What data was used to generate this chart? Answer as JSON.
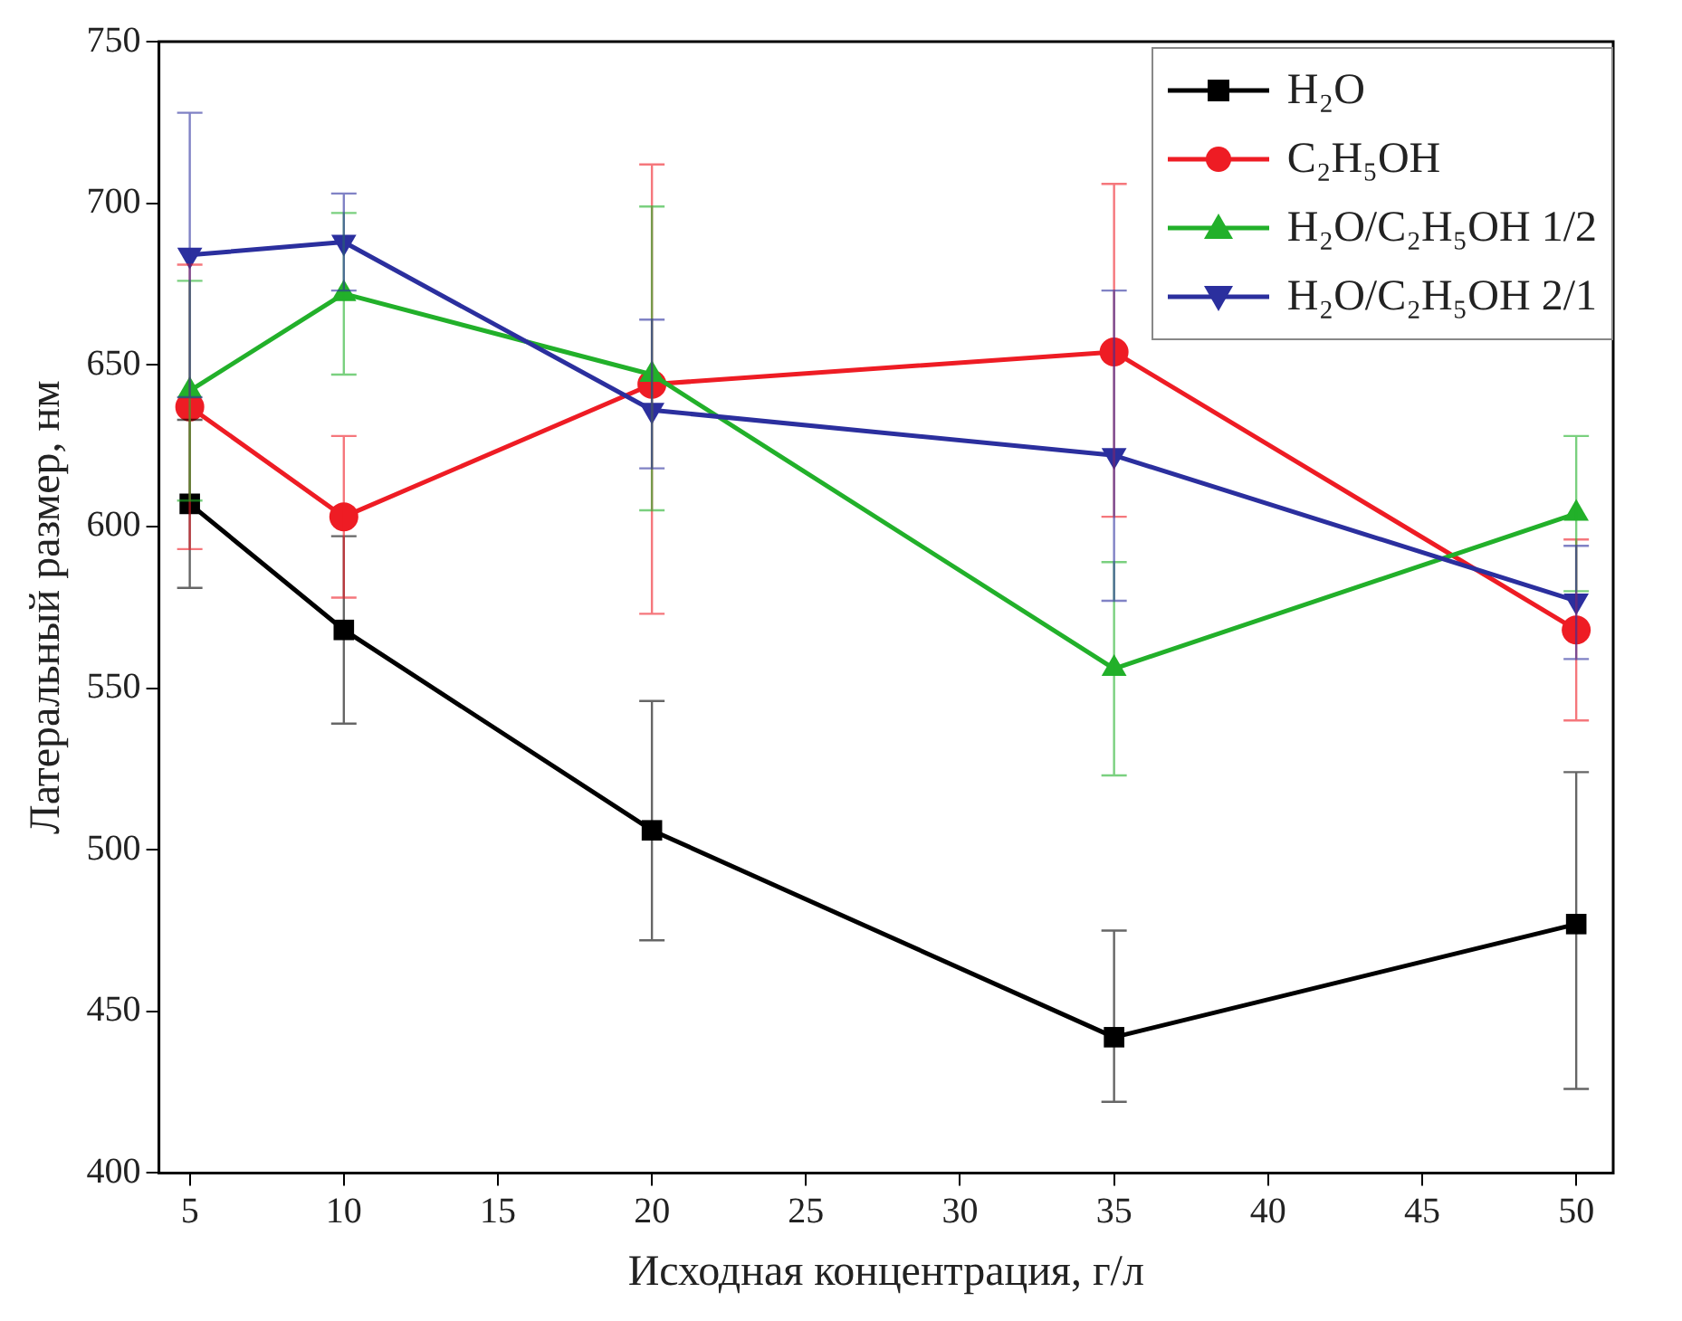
{
  "chart_data": {
    "type": "line",
    "xlabel": "Исходная концентрация, г/л",
    "ylabel": "Латеральный размер, нм",
    "x": [
      5,
      10,
      20,
      35,
      50
    ],
    "xlim": [
      4,
      51.2
    ],
    "xticks": [
      5,
      10,
      15,
      20,
      25,
      30,
      35,
      40,
      45,
      50
    ],
    "ylim": [
      400,
      750
    ],
    "yticks": [
      400,
      450,
      500,
      550,
      600,
      650,
      700,
      750
    ],
    "grid": false,
    "legend": "top right",
    "line_style": "solid",
    "series": [
      {
        "name": "H₂O",
        "color": "#000000",
        "marker": "square",
        "values": [
          607,
          568,
          506,
          442,
          477
        ],
        "errors": [
          [
            581,
            633
          ],
          [
            539,
            597
          ],
          [
            472,
            546
          ],
          [
            422,
            475
          ],
          [
            426,
            524
          ]
        ]
      },
      {
        "name": "C₂H₅OH",
        "color": "#ee1c24",
        "marker": "circle",
        "values": [
          637,
          603,
          644,
          654,
          568
        ],
        "errors": [
          [
            593,
            681
          ],
          [
            578,
            628
          ],
          [
            573,
            712
          ],
          [
            603,
            706
          ],
          [
            540,
            596
          ]
        ]
      },
      {
        "name": "H₂O/C₂H₅OH 1/2",
        "color": "#22b02a",
        "marker": "triangle",
        "values": [
          642,
          672,
          647,
          556,
          604
        ],
        "errors": [
          [
            608,
            676
          ],
          [
            647,
            697
          ],
          [
            605,
            699
          ],
          [
            523,
            589
          ],
          [
            580,
            628
          ]
        ]
      },
      {
        "name": "H₂O/C₂H₅OH 2/1",
        "color": "#2b2f9e",
        "marker": "triangle-down",
        "values": [
          684,
          688,
          636,
          622,
          577
        ],
        "errors": [
          [
            640,
            728
          ],
          [
            673,
            703
          ],
          [
            618,
            664
          ],
          [
            577,
            673
          ],
          [
            559,
            594
          ]
        ]
      }
    ]
  }
}
